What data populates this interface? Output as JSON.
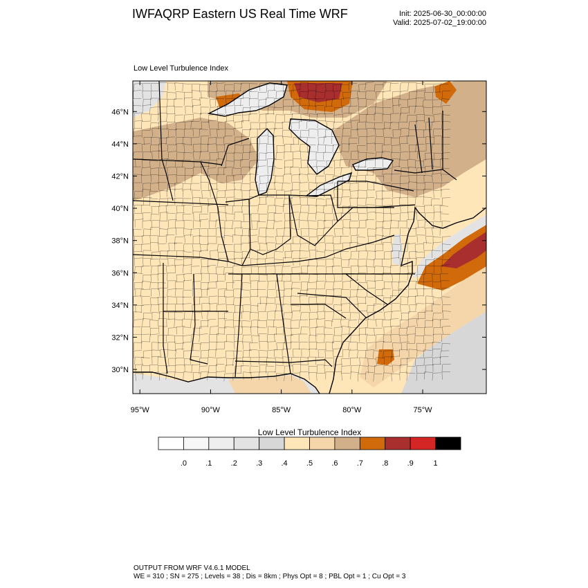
{
  "header": {
    "title": "IWFAQRP Eastern US Real Time WRF",
    "init": "Init: 2025-06-30_00:00:00",
    "valid": "Valid: 2025-07-02_19:00:00"
  },
  "map": {
    "subtitle": "Low Level Turbulence Index",
    "lon_range": [
      -95.5,
      -70.5
    ],
    "lat_range": [
      28.5,
      47.9
    ],
    "lat_ticks": [
      {
        "value": 30,
        "label": "30°N"
      },
      {
        "value": 32,
        "label": "32°N"
      },
      {
        "value": 34,
        "label": "34°N"
      },
      {
        "value": 36,
        "label": "36°N"
      },
      {
        "value": 38,
        "label": "38°N"
      },
      {
        "value": 40,
        "label": "40°N"
      },
      {
        "value": 42,
        "label": "42°N"
      },
      {
        "value": 44,
        "label": "44°N"
      },
      {
        "value": 46,
        "label": "46°N"
      }
    ],
    "lon_ticks": [
      {
        "value": -95,
        "label": "95°W"
      },
      {
        "value": -90,
        "label": "90°W"
      },
      {
        "value": -85,
        "label": "85°W"
      },
      {
        "value": -80,
        "label": "80°W"
      },
      {
        "value": -75,
        "label": "75°W"
      }
    ]
  },
  "colorbar": {
    "title": "Low Level Turbulence Index",
    "colors": [
      "#ffffff",
      "#f7f7f7",
      "#eeeeee",
      "#e3e3e3",
      "#d7d7d7",
      "#ffe6b8",
      "#f5d6aa",
      "#d2b08a",
      "#d06a0a",
      "#a92e2e",
      "#d52626",
      "#000000"
    ],
    "labels": [
      ".0",
      ".1",
      ".2",
      ".3",
      ".4",
      ".5",
      ".6",
      ".7",
      ".8",
      ".9",
      "1"
    ]
  },
  "footer": {
    "line1": "OUTPUT FROM WRF V4.6.1 MODEL",
    "line2": "WE = 310 ; SN = 275 ; Levels = 38 ; Dis = 8km ; Phys Opt = 8 ; PBL Opt = 1 ; Cu Opt = 3"
  }
}
